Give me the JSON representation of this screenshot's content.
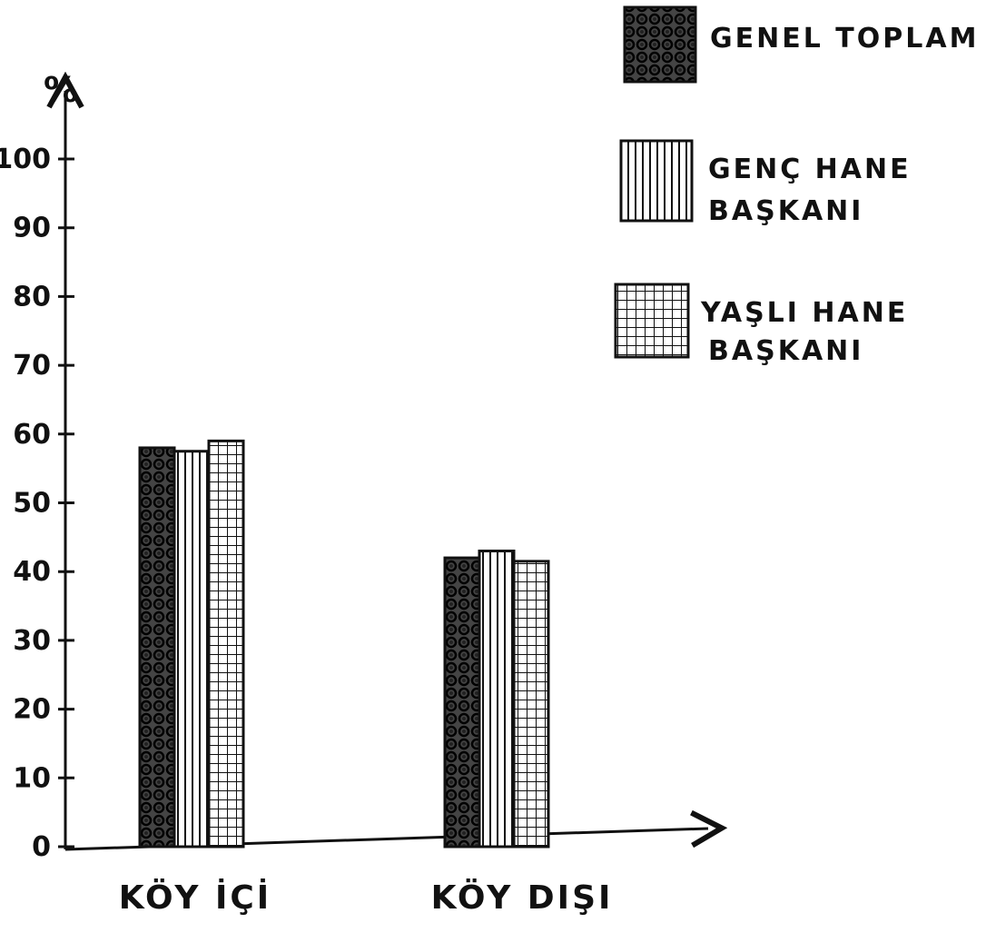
{
  "chart_data": {
    "type": "bar",
    "y_unit_label": "%",
    "categories": [
      "KÖY İÇİ",
      "KÖY DIŞI"
    ],
    "series": [
      {
        "name": "GENEL TOPLAM",
        "values": [
          58,
          42
        ],
        "pattern": "circles"
      },
      {
        "name": "GENÇ HANE BAŞKANI",
        "values": [
          57.5,
          43
        ],
        "pattern": "vertical-lines"
      },
      {
        "name": "YAŞLI HANE BAŞKANI",
        "values": [
          59,
          41.5
        ],
        "pattern": "grid"
      }
    ],
    "y_ticks": [
      0,
      10,
      20,
      30,
      40,
      50,
      60,
      70,
      80,
      90,
      100
    ],
    "ylim": [
      0,
      100
    ],
    "grid": false,
    "legend_position": "top-right",
    "colors": {
      "ink": "#111111",
      "background": "#ffffff"
    }
  }
}
